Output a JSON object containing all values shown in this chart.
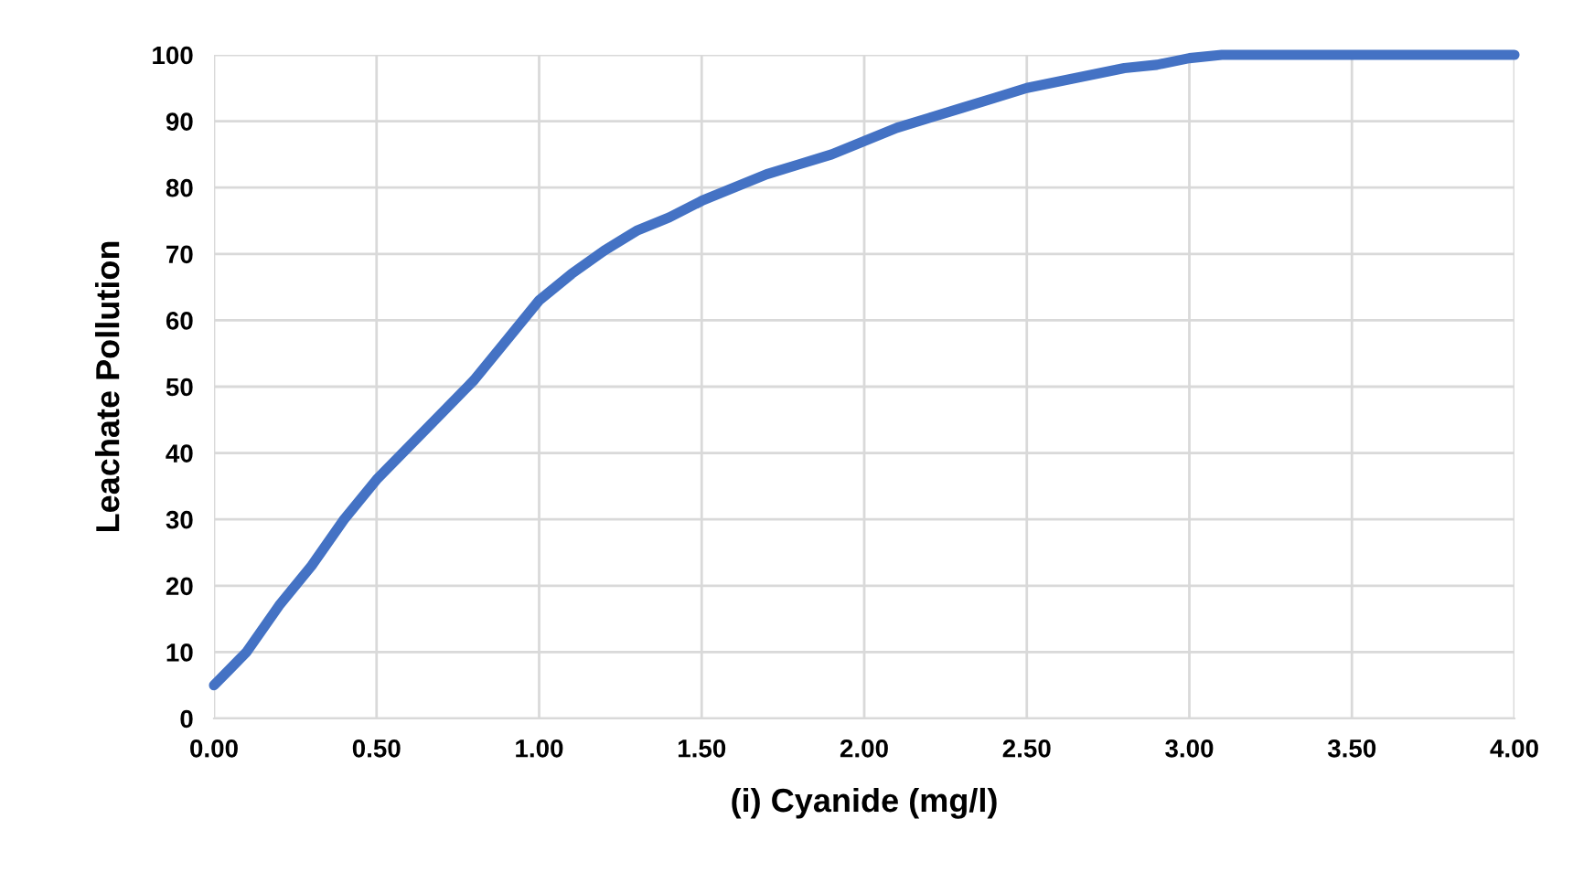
{
  "chart_data": {
    "type": "line",
    "xlabel": "(i) Cyanide (mg/l)",
    "ylabel": "Leachate Pollution",
    "x": [
      0,
      0.1,
      0.2,
      0.3,
      0.4,
      0.5,
      0.6,
      0.7,
      0.8,
      0.9,
      1.0,
      1.1,
      1.2,
      1.3,
      1.4,
      1.5,
      1.6,
      1.7,
      1.8,
      1.9,
      2.0,
      2.1,
      2.2,
      2.3,
      2.4,
      2.5,
      2.6,
      2.7,
      2.8,
      2.9,
      3.0,
      3.1,
      3.2,
      4.0
    ],
    "series": [
      {
        "color": "#4472c4",
        "values": [
          5,
          10,
          17,
          23,
          30,
          36,
          41,
          46,
          51,
          57,
          63,
          67,
          70.5,
          73.5,
          75.5,
          78,
          80,
          82,
          83.5,
          85,
          87,
          89,
          90.5,
          92,
          93.5,
          95,
          96,
          97,
          98,
          98.5,
          99.5,
          100,
          100,
          100
        ]
      }
    ],
    "xlim": [
      0,
      4
    ],
    "ylim": [
      0,
      100
    ],
    "xticks": [
      {
        "value": 0,
        "label": "0.00"
      },
      {
        "value": 0.5,
        "label": "0.50"
      },
      {
        "value": 1,
        "label": "1.00"
      },
      {
        "value": 1.5,
        "label": "1.50"
      },
      {
        "value": 2,
        "label": "2.00"
      },
      {
        "value": 2.5,
        "label": "2.50"
      },
      {
        "value": 3,
        "label": "3.00"
      },
      {
        "value": 3.5,
        "label": "3.50"
      },
      {
        "value": 4,
        "label": "4.00"
      }
    ],
    "yticks": [
      0,
      10,
      20,
      30,
      40,
      50,
      60,
      70,
      80,
      90,
      100
    ],
    "grid": true,
    "marker": "none",
    "line_style": "solid"
  }
}
